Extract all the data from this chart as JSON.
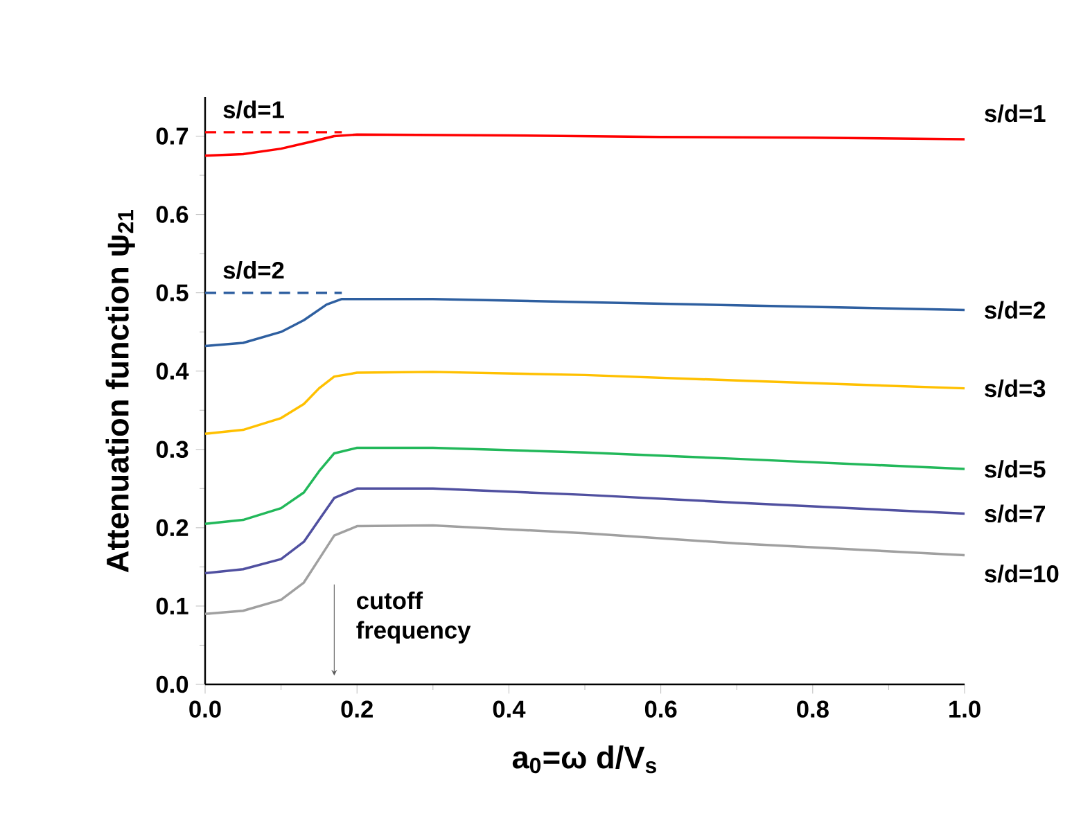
{
  "chart_data": {
    "type": "line",
    "xlabel": "a$_{0}$=ω d/V$_{s}$",
    "ylabel": "Attenuation function ψ$_{21}$",
    "xlim": [
      0,
      1
    ],
    "ylim": [
      0,
      0.75
    ],
    "xticks": [
      {
        "value": 0,
        "label": "0.0"
      },
      {
        "value": 0.2,
        "label": "0.2"
      },
      {
        "value": 0.4,
        "label": "0.4"
      },
      {
        "value": 0.6,
        "label": "0.6"
      },
      {
        "value": 0.8,
        "label": "0.8"
      },
      {
        "value": 1,
        "label": "1.0"
      }
    ],
    "yticks": [
      {
        "value": 0,
        "label": "0.0"
      },
      {
        "value": 0.1,
        "label": "0.1"
      },
      {
        "value": 0.2,
        "label": "0.2"
      },
      {
        "value": 0.3,
        "label": "0.3"
      },
      {
        "value": 0.4,
        "label": "0.4"
      },
      {
        "value": 0.5,
        "label": "0.5"
      },
      {
        "value": 0.6,
        "label": "0.6"
      },
      {
        "value": 0.7,
        "label": "0.7"
      }
    ],
    "grid": false,
    "legend": false,
    "marker": "none",
    "series": [
      {
        "name": "s/d=1",
        "color": "#ff0000",
        "line_style": "solid",
        "x": [
          0,
          0.05,
          0.1,
          0.14,
          0.17,
          0.2,
          0.4,
          0.6,
          0.8,
          1.0
        ],
        "values": [
          0.675,
          0.677,
          0.684,
          0.693,
          0.7,
          0.702,
          0.701,
          0.699,
          0.698,
          0.696
        ]
      },
      {
        "name": "s/d=1",
        "color": "#ff0000",
        "line_style": "dashed",
        "x": [
          0,
          0.18
        ],
        "values": [
          0.705,
          0.705
        ]
      },
      {
        "name": "s/d=2",
        "color": "#2e5fa0",
        "line_style": "solid",
        "x": [
          0,
          0.05,
          0.1,
          0.13,
          0.16,
          0.18,
          0.3,
          0.5,
          0.7,
          1.0
        ],
        "values": [
          0.432,
          0.436,
          0.45,
          0.465,
          0.485,
          0.492,
          0.492,
          0.488,
          0.484,
          0.478
        ]
      },
      {
        "name": "s/d=2",
        "color": "#2e5fa0",
        "line_style": "dashed",
        "x": [
          0,
          0.18
        ],
        "values": [
          0.5,
          0.5
        ]
      },
      {
        "name": "s/d=3",
        "color": "#ffc000",
        "line_style": "solid",
        "x": [
          0,
          0.05,
          0.1,
          0.13,
          0.15,
          0.17,
          0.2,
          0.3,
          0.5,
          0.7,
          1.0
        ],
        "values": [
          0.32,
          0.325,
          0.34,
          0.358,
          0.378,
          0.393,
          0.398,
          0.399,
          0.395,
          0.388,
          0.378
        ]
      },
      {
        "name": "s/d=5",
        "color": "#22b85a",
        "line_style": "solid",
        "x": [
          0,
          0.05,
          0.1,
          0.13,
          0.15,
          0.17,
          0.2,
          0.3,
          0.5,
          0.7,
          1.0
        ],
        "values": [
          0.205,
          0.21,
          0.225,
          0.245,
          0.272,
          0.295,
          0.302,
          0.302,
          0.296,
          0.288,
          0.275
        ]
      },
      {
        "name": "s/d=7",
        "color": "#5050a0",
        "line_style": "solid",
        "x": [
          0,
          0.05,
          0.1,
          0.13,
          0.15,
          0.17,
          0.2,
          0.3,
          0.5,
          0.7,
          1.0
        ],
        "values": [
          0.142,
          0.147,
          0.16,
          0.182,
          0.21,
          0.238,
          0.25,
          0.25,
          0.242,
          0.232,
          0.218
        ]
      },
      {
        "name": "s/d=10",
        "color": "#a0a0a0",
        "line_style": "solid",
        "x": [
          0,
          0.05,
          0.1,
          0.13,
          0.15,
          0.17,
          0.2,
          0.3,
          0.5,
          0.7,
          1.0
        ],
        "values": [
          0.09,
          0.094,
          0.108,
          0.13,
          0.16,
          0.19,
          0.202,
          0.203,
          0.193,
          0.18,
          0.165
        ]
      }
    ],
    "annotations": [
      "cutoff frequency"
    ]
  }
}
